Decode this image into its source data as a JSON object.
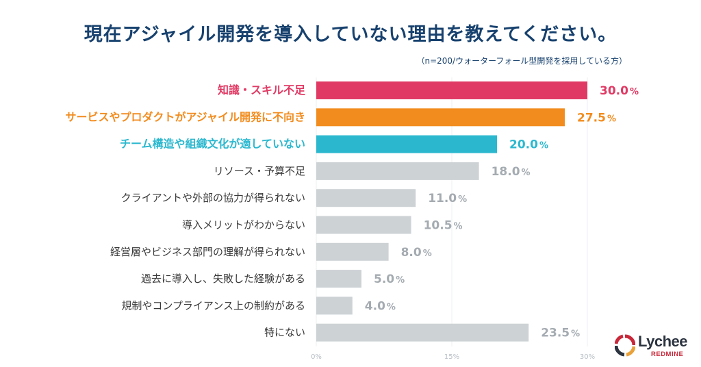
{
  "chart_data": {
    "type": "bar",
    "orientation": "horizontal",
    "title": "現在アジャイル開発を導入していない理由を教えてください。",
    "subtitle": "（n=200/ウォーターフォール型開発を採用している方）",
    "categories": [
      "知識・スキル不足",
      "サービスやプロダクトがアジャイル開発に不向き",
      "チーム構造や組織文化が適していない",
      "リソース・予算不足",
      "クライアントや外部の協力が得られない",
      "導入メリットがわからない",
      "経営層やビジネス部門の理解が得られない",
      "過去に導入し、失敗した経験がある",
      "規制やコンプライアンス上の制約がある",
      "特にない"
    ],
    "values": [
      30.0,
      27.5,
      20.0,
      18.0,
      11.0,
      10.5,
      8.0,
      5.0,
      4.0,
      23.5
    ],
    "value_labels": [
      "30.0",
      "27.5",
      "20.0",
      "18.0",
      "11.0",
      "10.5",
      "8.0",
      "5.0",
      "4.0",
      "23.5"
    ],
    "unit": "%",
    "bar_colors": [
      "#e03a64",
      "#f28c1e",
      "#2bb8cf",
      "#cdd2d5",
      "#cdd2d5",
      "#cdd2d5",
      "#cdd2d5",
      "#cdd2d5",
      "#cdd2d5",
      "#cdd2d5"
    ],
    "label_colors": [
      "#e03a64",
      "#f28c1e",
      "#2bb8cf",
      "#3a3a3a",
      "#3a3a3a",
      "#3a3a3a",
      "#3a3a3a",
      "#3a3a3a",
      "#3a3a3a",
      "#3a3a3a"
    ],
    "value_colors": [
      "#e03a64",
      "#f28c1e",
      "#2bb8cf",
      "#a4abb1",
      "#a4abb1",
      "#a4abb1",
      "#a4abb1",
      "#a4abb1",
      "#a4abb1",
      "#a4abb1"
    ],
    "highlighted": [
      true,
      true,
      true,
      false,
      false,
      false,
      false,
      false,
      false,
      false
    ],
    "xlim": [
      0,
      30
    ],
    "xticks": [
      0,
      15,
      30
    ],
    "xtick_labels": [
      "0%",
      "15%",
      "30%"
    ],
    "grid": true
  },
  "logo": {
    "name": "Lychee",
    "sub": "REDMINE",
    "colors": [
      "#c8283a",
      "#2c3440",
      "#e9a23b"
    ]
  }
}
